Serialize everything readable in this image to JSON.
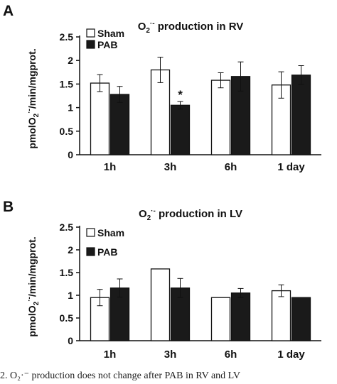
{
  "chart_data": [
    {
      "type": "bar",
      "panel_label": "A",
      "title": "O₂⁻ production in RV",
      "title_main": "O",
      "title_sub": "2",
      "title_sup": "·-",
      "title_rest": " production in RV",
      "ylabel": "pmolO₂⁻/min/mgprot.",
      "ylabel_pre": "pmolO",
      "ylabel_sub": "2",
      "ylabel_sup": "·-",
      "ylabel_post": "/min/mgprot.",
      "categories": [
        "1h",
        "3h",
        "6h",
        "1 day"
      ],
      "ylim": [
        0,
        2.5
      ],
      "yticks": [
        "0",
        "0.5",
        "1",
        "1.5",
        "2",
        "2.5"
      ],
      "legend_position": "top-left",
      "series": [
        {
          "name": "Sham",
          "values": [
            1.52,
            1.8,
            1.58,
            1.48
          ],
          "errors": [
            0.18,
            0.27,
            0.16,
            0.28
          ],
          "color": "#ffffff"
        },
        {
          "name": "PAB",
          "values": [
            1.28,
            1.05,
            1.66,
            1.69
          ],
          "errors": [
            0.17,
            0.08,
            0.31,
            0.2
          ],
          "color": "#1a1a1a"
        }
      ],
      "annotations": [
        {
          "text": "*",
          "category": "3h",
          "series": "PAB"
        }
      ]
    },
    {
      "type": "bar",
      "panel_label": "B",
      "title": "O₂⁻ production in LV",
      "title_main": "O",
      "title_sub": "2",
      "title_sup": "·-",
      "title_rest": " production in LV",
      "ylabel": "pmolO₂⁻/min/mgprot.",
      "ylabel_pre": "pmolO",
      "ylabel_sub": "2",
      "ylabel_sup": "·-",
      "ylabel_post": "/min/mgprot.",
      "categories": [
        "1h",
        "3h",
        "6h",
        "1 day"
      ],
      "ylim": [
        0,
        2.5
      ],
      "yticks": [
        "0",
        "0.5",
        "1",
        "1.5",
        "2",
        "2.5"
      ],
      "legend_position": "top-left",
      "series": [
        {
          "name": "Sham",
          "values": [
            0.95,
            1.58,
            0.95,
            1.1
          ],
          "errors": [
            0.18,
            0.0,
            0.0,
            0.13
          ],
          "color": "#ffffff"
        },
        {
          "name": "PAB",
          "values": [
            1.16,
            1.16,
            1.05,
            0.95
          ],
          "errors": [
            0.2,
            0.21,
            0.1,
            0.0
          ],
          "color": "#1a1a1a"
        }
      ],
      "annotations": []
    }
  ],
  "caption": "2. O₂·⁻ production does not change after PAB in RV and LV"
}
